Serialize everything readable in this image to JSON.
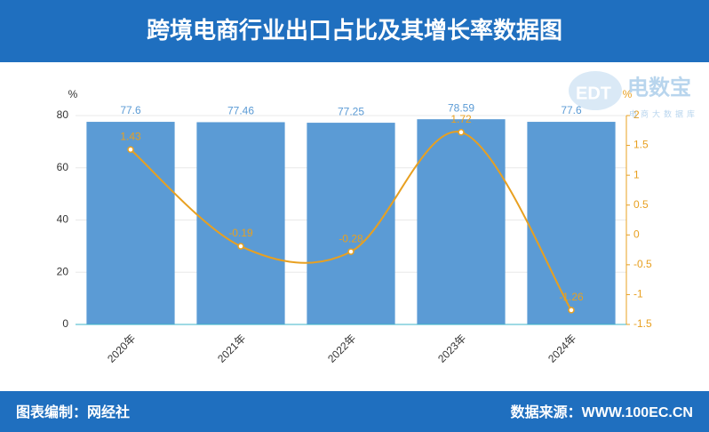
{
  "chart_data": {
    "type": "bar-line",
    "title": "跨境电商行业出口占比及其增长率数据图",
    "categories": [
      "2020年",
      "2021年",
      "2022年",
      "2023年",
      "2024年"
    ],
    "series": [
      {
        "name": "出口占比",
        "type": "bar",
        "color": "#5b9bd5",
        "values": [
          77.6,
          77.46,
          77.25,
          78.59,
          77.6
        ]
      },
      {
        "name": "增长率",
        "type": "line",
        "axis": "y2",
        "color": "#e8a020",
        "values": [
          1.43,
          -0.19,
          -0.28,
          1.72,
          -1.26
        ]
      }
    ],
    "ylim": [
      0,
      80
    ],
    "yticks": [
      0,
      20,
      40,
      60,
      80
    ],
    "y_unit": "%",
    "y2lim": [
      -1.5,
      2
    ],
    "y2ticks": [
      -1.5,
      -1,
      -0.5,
      0,
      0.5,
      1,
      1.5,
      2
    ],
    "y2_unit": "%",
    "grid": true
  },
  "logo": {
    "mark": "EDT",
    "name": "电数宝",
    "sub": "电商大数据库"
  },
  "footer": {
    "left": "图表编制：网经社",
    "right": "数据来源：WWW.100EC.CN"
  }
}
